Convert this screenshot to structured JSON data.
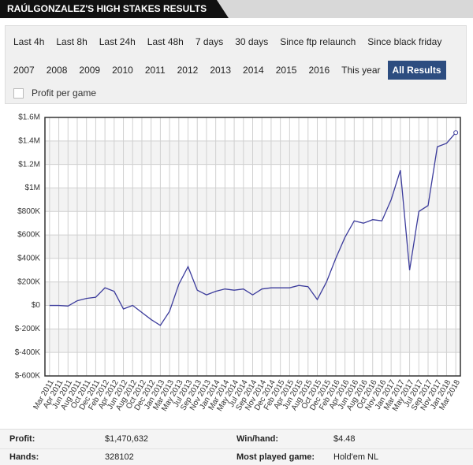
{
  "header": {
    "title": "RAÚLGONZALEZ'S HIGH STAKES RESULTS"
  },
  "filters": {
    "row1": [
      "Last 4h",
      "Last 8h",
      "Last 24h",
      "Last 48h",
      "7 days",
      "30 days",
      "Since ftp relaunch",
      "Since black friday"
    ],
    "row2": [
      "2007",
      "2008",
      "2009",
      "2010",
      "2011",
      "2012",
      "2013",
      "2014",
      "2015",
      "2016",
      "This year",
      "All Results"
    ],
    "checkbox": "Profit per game"
  },
  "chart_data": {
    "type": "line",
    "categories": [
      "Mar 2011",
      "Apr 2011",
      "Jun 2011",
      "Aug 2011",
      "Oct 2011",
      "Dec 2011",
      "Feb 2012",
      "Apr 2012",
      "Jun 2012",
      "Aug 2012",
      "Oct 2012",
      "Dec 2012",
      "Jan 2013",
      "Mar 2013",
      "May 2013",
      "Jul 2013",
      "Sep 2013",
      "Nov 2013",
      "Jan 2014",
      "Mar 2014",
      "May 2014",
      "Jul 2014",
      "Sep 2014",
      "Nov 2014",
      "Dec 2014",
      "Feb 2015",
      "Apr 2015",
      "Jun 2015",
      "Aug 2015",
      "Oct 2015",
      "Dec 2015",
      "Feb 2016",
      "Apr 2016",
      "Jun 2016",
      "Aug 2016",
      "Oct 2016",
      "Nov 2016",
      "Jan 2017",
      "Mar 2017",
      "May 2017",
      "Jul 2017",
      "Sep 2017",
      "Nov 2017",
      "Jan 2018",
      "Mar 2018"
    ],
    "series": [
      {
        "color": "#3c3c9c",
        "values": [
          0,
          0,
          -5000,
          40000,
          60000,
          70000,
          150000,
          120000,
          -30000,
          0,
          -60000,
          -120000,
          -170000,
          -50000,
          180000,
          330000,
          130000,
          90000,
          120000,
          140000,
          130000,
          140000,
          90000,
          140000,
          150000,
          150000,
          150000,
          170000,
          160000,
          50000,
          200000,
          400000,
          580000,
          720000,
          700000,
          730000,
          720000,
          900000,
          1150000,
          300000,
          800000,
          850000,
          1350000,
          1380000,
          1470632
        ]
      }
    ],
    "ylim": [
      -600000,
      1600000
    ],
    "yticks": [
      {
        "value": -600000,
        "label": "$-600K"
      },
      {
        "value": -400000,
        "label": "$-400K"
      },
      {
        "value": -200000,
        "label": "$-200K"
      },
      {
        "value": 0,
        "label": "$0"
      },
      {
        "value": 200000,
        "label": "$200K"
      },
      {
        "value": 400000,
        "label": "$400K"
      },
      {
        "value": 600000,
        "label": "$600K"
      },
      {
        "value": 800000,
        "label": "$800K"
      },
      {
        "value": 1000000,
        "label": "$1M"
      },
      {
        "value": 1200000,
        "label": "$1.2M"
      },
      {
        "value": 1400000,
        "label": "$1.4M"
      },
      {
        "value": 1600000,
        "label": "$1.6M"
      }
    ],
    "grid": true
  },
  "stats": [
    [
      {
        "label": "Profit:",
        "value": "$1,470,632"
      },
      {
        "label": "Win/hand:",
        "value": "$4.48"
      }
    ],
    [
      {
        "label": "Hands:",
        "value": "328102"
      },
      {
        "label": "Most played game:",
        "value": "Hold'em NL"
      }
    ]
  ]
}
